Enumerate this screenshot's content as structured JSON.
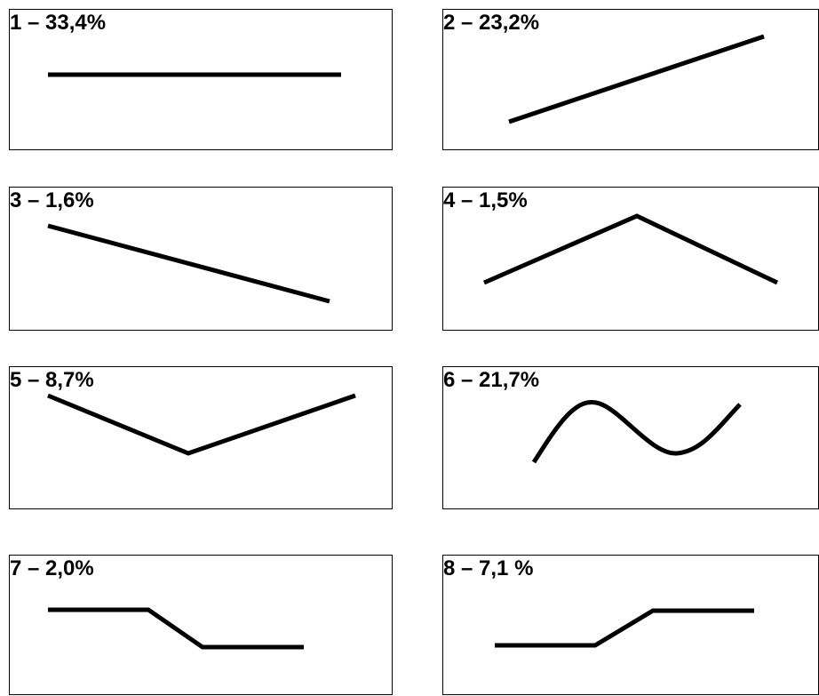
{
  "panels": [
    {
      "label": "1 – 33,4%",
      "shape": "flat"
    },
    {
      "label": "2 – 23,2%",
      "shape": "rising"
    },
    {
      "label": "3 – 1,6%",
      "shape": "falling"
    },
    {
      "label": "4 – 1,5%",
      "shape": "rise-then-fall"
    },
    {
      "label": "5 – 8,7%",
      "shape": "fall-then-rise"
    },
    {
      "label": "6 – 21,7%",
      "shape": "wave"
    },
    {
      "label": "7 – 2,0%",
      "shape": "high-plateau-step-down"
    },
    {
      "label": "8 – 7,1 %",
      "shape": "low-plateau-step-up"
    }
  ]
}
